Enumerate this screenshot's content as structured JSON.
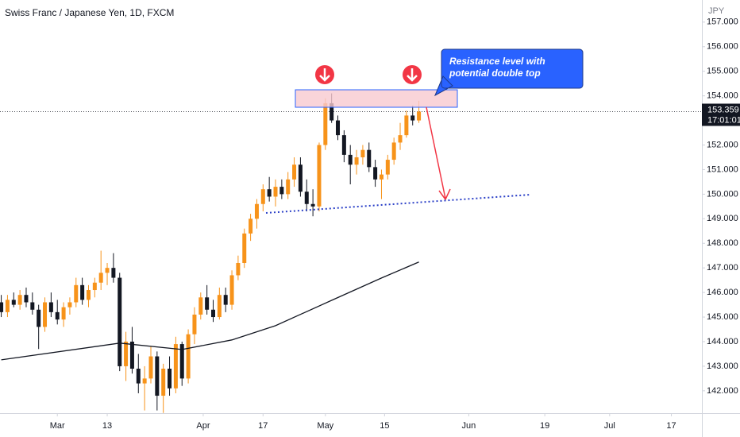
{
  "chart_data": {
    "type": "candlestick",
    "title": "Swiss Franc / Japanese Yen, 1D, FXCM",
    "currency": "JPY",
    "annotation": "Resistance level with potential double top",
    "x": [
      -9,
      -8,
      -7,
      -6,
      -5,
      -4,
      -3,
      -2,
      -1,
      0,
      1,
      2,
      3,
      4,
      5,
      6,
      7,
      8,
      9,
      10,
      11,
      12,
      13,
      14,
      15,
      16,
      17,
      18,
      19,
      20,
      21,
      22,
      23,
      24,
      25,
      26,
      27,
      28,
      29,
      30,
      31,
      32,
      33,
      34,
      35,
      36,
      37,
      38,
      39,
      40,
      41,
      42,
      43,
      44,
      45,
      46,
      47,
      48,
      49,
      50,
      51,
      52,
      53,
      54,
      55,
      56,
      57,
      58
    ],
    "open": [
      145.6,
      145.2,
      145.7,
      145.5,
      145.9,
      145.6,
      145.3,
      144.6,
      145.6,
      145.2,
      144.9,
      145.4,
      145.6,
      146.3,
      145.7,
      146.1,
      146.4,
      146.8,
      147.0,
      146.6,
      143.0,
      144.0,
      142.9,
      142.3,
      142.5,
      143.4,
      141.8,
      142.9,
      142.1,
      143.9,
      142.5,
      144.3,
      145.1,
      145.8,
      145.3,
      145.0,
      145.9,
      145.5,
      146.7,
      147.2,
      148.4,
      149.0,
      149.6,
      150.2,
      149.9,
      150.3,
      150.0,
      150.6,
      151.2,
      150.1,
      149.6,
      149.5,
      152.0,
      153.7,
      153.0,
      152.4,
      151.6,
      151.2,
      151.5,
      151.8,
      151.1,
      150.6,
      150.8,
      151.4,
      152.1,
      152.4,
      153.2,
      153.0
    ],
    "high": [
      145.9,
      145.9,
      146.0,
      146.1,
      146.2,
      146.0,
      145.5,
      145.8,
      146.0,
      145.7,
      145.6,
      145.8,
      146.6,
      146.6,
      146.3,
      146.6,
      147.7,
      147.2,
      147.6,
      146.8,
      144.4,
      144.6,
      143.5,
      143.0,
      143.8,
      143.6,
      143.1,
      143.4,
      144.2,
      144.0,
      144.5,
      145.4,
      146.0,
      146.3,
      145.7,
      146.2,
      146.2,
      146.9,
      147.5,
      148.6,
      149.2,
      149.8,
      150.4,
      150.7,
      150.6,
      150.6,
      150.9,
      151.5,
      151.5,
      150.6,
      150.2,
      152.1,
      153.9,
      154.1,
      153.2,
      152.6,
      152.0,
      151.8,
      152.0,
      152.1,
      151.4,
      151.0,
      151.6,
      152.3,
      152.9,
      153.4,
      153.6,
      153.8
    ],
    "low": [
      145.0,
      145.0,
      145.4,
      145.3,
      145.4,
      145.1,
      143.7,
      144.4,
      145.0,
      144.7,
      144.6,
      145.1,
      145.4,
      145.5,
      145.4,
      145.8,
      146.1,
      146.3,
      146.4,
      142.8,
      142.4,
      142.7,
      141.9,
      141.2,
      142.3,
      141.2,
      141.1,
      141.8,
      141.9,
      142.2,
      142.3,
      143.9,
      144.9,
      145.1,
      144.8,
      144.9,
      145.2,
      145.3,
      146.5,
      147.0,
      148.1,
      148.6,
      149.3,
      149.7,
      149.5,
      149.8,
      149.8,
      150.3,
      149.9,
      149.3,
      149.1,
      149.3,
      151.8,
      152.9,
      152.2,
      151.3,
      150.4,
      150.8,
      151.2,
      150.9,
      150.3,
      149.8,
      150.6,
      151.2,
      151.8,
      152.3,
      152.8,
      152.9
    ],
    "close": [
      145.2,
      145.7,
      145.5,
      145.9,
      145.6,
      145.3,
      144.6,
      145.6,
      145.2,
      144.9,
      145.4,
      145.6,
      146.3,
      145.7,
      146.1,
      146.4,
      146.8,
      147.0,
      146.6,
      143.0,
      144.0,
      142.9,
      142.3,
      142.5,
      143.4,
      141.8,
      142.9,
      142.1,
      143.9,
      142.5,
      144.3,
      145.1,
      145.8,
      145.3,
      145.0,
      145.9,
      145.5,
      146.7,
      147.2,
      148.4,
      149.0,
      149.6,
      150.2,
      149.9,
      150.3,
      150.0,
      150.6,
      151.2,
      150.1,
      149.6,
      149.5,
      152.0,
      153.7,
      153.0,
      152.4,
      151.6,
      151.2,
      151.5,
      151.8,
      151.1,
      150.6,
      150.8,
      151.4,
      152.1,
      152.4,
      153.2,
      153.0,
      153.36
    ],
    "up_color": "#f7931a",
    "down_color": "#131722",
    "ma": {
      "color": "#131722",
      "x": [
        -9,
        10,
        20,
        28,
        35,
        44,
        52,
        58
      ],
      "values": [
        143.26,
        143.94,
        143.68,
        144.07,
        144.65,
        145.68,
        146.59,
        147.24
      ]
    },
    "last_price": {
      "value": 153.359,
      "label": "153.359"
    },
    "countdown": "17:01:01",
    "xlim": [
      -9.2,
      103.4
    ],
    "xticks": [
      {
        "value": 0,
        "label": "Mar"
      },
      {
        "value": 8,
        "label": "13"
      },
      {
        "value": 23.4,
        "label": "Apr"
      },
      {
        "value": 33,
        "label": "17"
      },
      {
        "value": 43,
        "label": "May"
      },
      {
        "value": 52.5,
        "label": "15"
      },
      {
        "value": 66,
        "label": "Jun"
      },
      {
        "value": 78.2,
        "label": "19"
      },
      {
        "value": 88.6,
        "label": "Jul"
      },
      {
        "value": 98.5,
        "label": "17"
      }
    ],
    "ylim": [
      141.09,
      157.9
    ],
    "yticks": [
      {
        "value": 142,
        "label": "142.000"
      },
      {
        "value": 143,
        "label": "143.000"
      },
      {
        "value": 144,
        "label": "144.000"
      },
      {
        "value": 145,
        "label": "145.000"
      },
      {
        "value": 146,
        "label": "146.000"
      },
      {
        "value": 147,
        "label": "147.000"
      },
      {
        "value": 148,
        "label": "148.000"
      },
      {
        "value": 149,
        "label": "149.000"
      },
      {
        "value": 150,
        "label": "150.000"
      },
      {
        "value": 151,
        "label": "151.000"
      },
      {
        "value": 152,
        "label": "152.000"
      },
      {
        "value": 154,
        "label": "154.000"
      },
      {
        "value": 155,
        "label": "155.000"
      },
      {
        "value": 156,
        "label": "156.000"
      },
      {
        "value": 157,
        "label": "157.000"
      }
    ],
    "grid": false
  }
}
